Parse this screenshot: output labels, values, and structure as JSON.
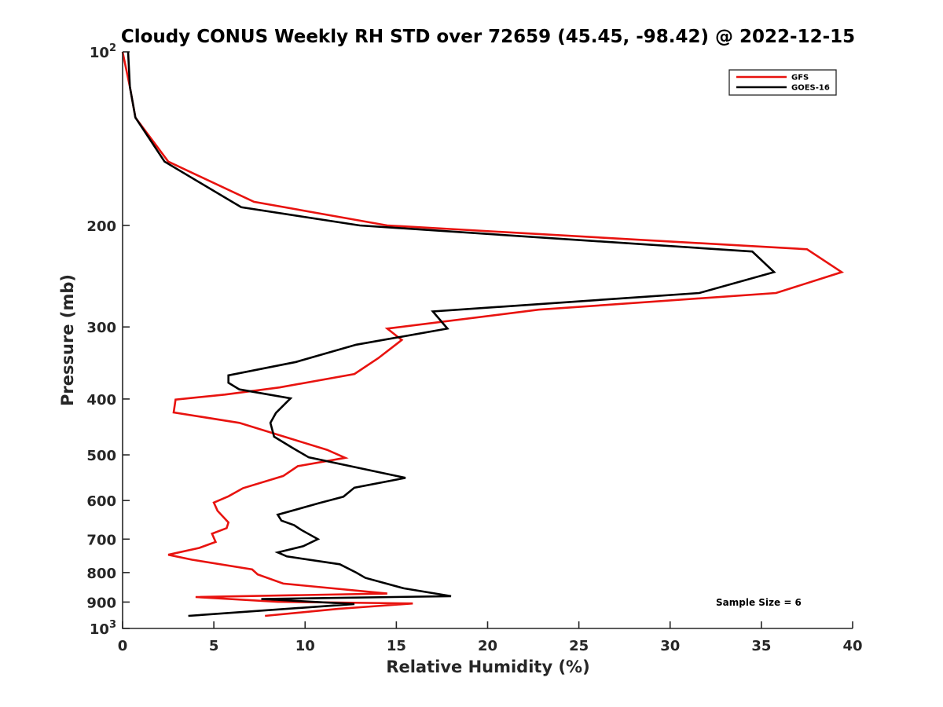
{
  "chart_data": {
    "type": "line",
    "title": "Cloudy CONUS Weekly RH STD over 72659 (45.45, -98.42) @ 2022-12-15",
    "xlabel": "Relative Humidity (%)",
    "ylabel": "Pressure (mb)",
    "xlim": [
      0,
      40
    ],
    "ylim": [
      100,
      1000
    ],
    "y_scale": "log",
    "y_reversed": true,
    "grid": false,
    "legend_placement": "top-right",
    "x_ticks": [
      0,
      5,
      10,
      15,
      20,
      25,
      30,
      35,
      40
    ],
    "y_ticks": [
      {
        "value": 100,
        "base": "10",
        "exp": "2"
      },
      {
        "value": 200,
        "label": "200"
      },
      {
        "value": 300,
        "label": "300"
      },
      {
        "value": 400,
        "label": "400"
      },
      {
        "value": 500,
        "label": "500"
      },
      {
        "value": 600,
        "label": "600"
      },
      {
        "value": 700,
        "label": "700"
      },
      {
        "value": 800,
        "label": "800"
      },
      {
        "value": 900,
        "label": "900"
      },
      {
        "value": 1000,
        "base": "10",
        "exp": "3"
      }
    ],
    "annotation": "Sample Size = 6",
    "series": [
      {
        "name": "GFS",
        "color": "#e8130f",
        "points": [
          [
            0.0,
            100
          ],
          [
            0.4,
            115
          ],
          [
            0.7,
            130
          ],
          [
            2.5,
            155
          ],
          [
            7.2,
            182
          ],
          [
            14.5,
            200
          ],
          [
            37.5,
            220
          ],
          [
            39.4,
            241
          ],
          [
            35.8,
            262
          ],
          [
            22.8,
            280
          ],
          [
            14.5,
            302
          ],
          [
            15.3,
            316
          ],
          [
            14.0,
            340
          ],
          [
            12.7,
            362
          ],
          [
            8.6,
            382
          ],
          [
            5.6,
            393
          ],
          [
            2.9,
            401
          ],
          [
            2.8,
            422
          ],
          [
            6.4,
            440
          ],
          [
            11.2,
            490
          ],
          [
            12.2,
            506
          ],
          [
            9.6,
            523
          ],
          [
            8.8,
            544
          ],
          [
            6.6,
            571
          ],
          [
            5.8,
            590
          ],
          [
            5.0,
            605
          ],
          [
            5.2,
            625
          ],
          [
            5.8,
            655
          ],
          [
            5.7,
            670
          ],
          [
            4.9,
            685
          ],
          [
            5.1,
            708
          ],
          [
            4.2,
            725
          ],
          [
            2.5,
            745
          ],
          [
            3.8,
            760
          ],
          [
            7.1,
            790
          ],
          [
            7.4,
            806
          ],
          [
            8.8,
            836
          ],
          [
            14.5,
            870
          ],
          [
            4.0,
            882
          ],
          [
            8.5,
            899
          ],
          [
            15.9,
            905
          ],
          [
            11.8,
            925
          ],
          [
            7.8,
            951
          ]
        ]
      },
      {
        "name": "GOES-16",
        "color": "#000000",
        "points": [
          [
            0.3,
            100
          ],
          [
            0.4,
            115
          ],
          [
            0.7,
            130
          ],
          [
            2.3,
            155
          ],
          [
            6.5,
            186
          ],
          [
            13.0,
            200
          ],
          [
            34.5,
            222
          ],
          [
            35.7,
            241
          ],
          [
            31.6,
            262
          ],
          [
            17.0,
            282
          ],
          [
            17.8,
            302
          ],
          [
            12.8,
            322
          ],
          [
            9.5,
            345
          ],
          [
            5.8,
            364
          ],
          [
            5.8,
            375
          ],
          [
            6.4,
            385
          ],
          [
            9.2,
            399
          ],
          [
            8.4,
            423
          ],
          [
            8.1,
            440
          ],
          [
            8.3,
            465
          ],
          [
            9.3,
            486
          ],
          [
            10.2,
            505
          ],
          [
            15.5,
            548
          ],
          [
            12.7,
            570
          ],
          [
            12.1,
            591
          ],
          [
            10.8,
            606
          ],
          [
            8.5,
            635
          ],
          [
            8.7,
            650
          ],
          [
            9.4,
            662
          ],
          [
            9.8,
            675
          ],
          [
            10.7,
            700
          ],
          [
            9.9,
            720
          ],
          [
            8.5,
            738
          ],
          [
            9.0,
            750
          ],
          [
            11.9,
            774
          ],
          [
            12.8,
            800
          ],
          [
            13.3,
            817
          ],
          [
            15.4,
            852
          ],
          [
            18.0,
            879
          ],
          [
            7.6,
            889
          ],
          [
            12.7,
            907
          ],
          [
            3.6,
            951
          ]
        ]
      }
    ]
  }
}
